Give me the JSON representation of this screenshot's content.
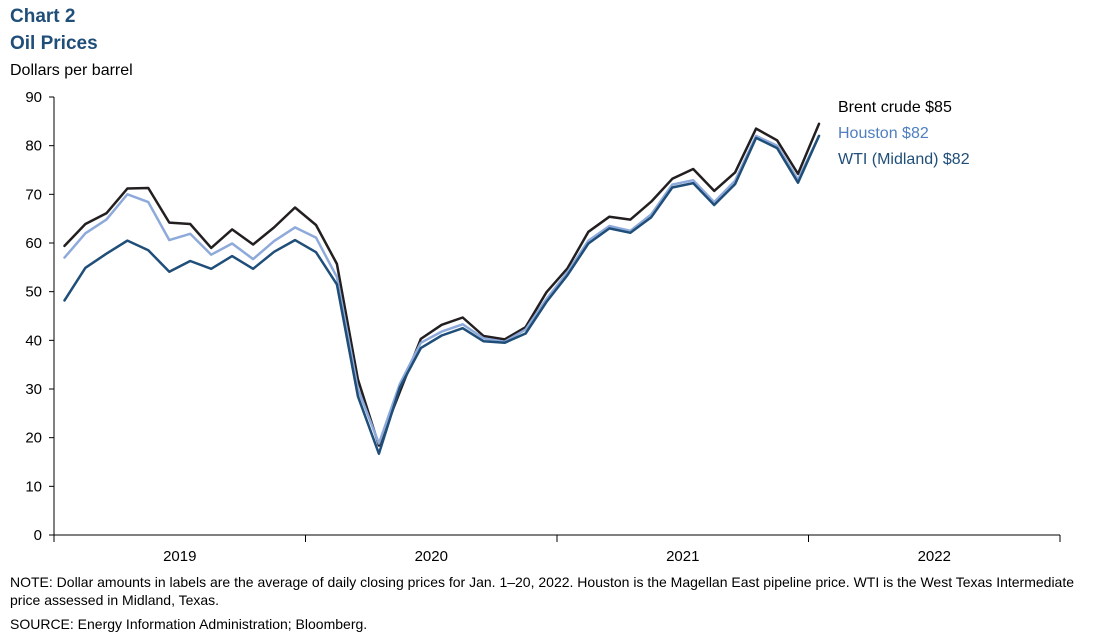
{
  "header": {
    "chart_label": "Chart 2",
    "title": "Oil Prices",
    "y_unit": "Dollars per barrel"
  },
  "notes": {
    "note": "NOTE: Dollar amounts in labels are the average of daily closing prices for Jan. 1–20, 2022. Houston is the Magellan East pipeline price. WTI is the West Texas Intermediate price assessed in Midland, Texas.",
    "source": "SOURCE: Energy Information Administration; Bloomberg."
  },
  "chart_data": {
    "type": "line",
    "ylim": [
      0,
      90
    ],
    "yticks": [
      0,
      10,
      20,
      30,
      40,
      50,
      60,
      70,
      80,
      90
    ],
    "x_start": "2019-01",
    "x_end": "2022-12",
    "xtick_labels": [
      "2019",
      "2020",
      "2021",
      "2022"
    ],
    "grid": false,
    "series": [
      {
        "name": "Brent crude",
        "label": "Brent crude $85",
        "color": "#231f20",
        "values": [
          59.4,
          63.9,
          66.1,
          71.2,
          71.3,
          64.2,
          63.9,
          59.0,
          62.8,
          59.7,
          63.2,
          67.3,
          63.7,
          55.7,
          32.0,
          18.4,
          29.4,
          40.3,
          43.2,
          44.7,
          40.9,
          40.2,
          42.7,
          49.9,
          54.8,
          62.3,
          65.4,
          64.8,
          68.5,
          73.2,
          75.2,
          70.7,
          74.5,
          83.5,
          81.1,
          74.2,
          84.5
        ]
      },
      {
        "name": "Houston",
        "label": "Houston $82",
        "color": "#8eaadb",
        "values": [
          57.0,
          62.0,
          64.8,
          70.0,
          68.4,
          60.6,
          61.9,
          57.6,
          59.9,
          56.7,
          60.4,
          63.2,
          61.1,
          53.0,
          30.0,
          18.8,
          31.0,
          39.5,
          41.8,
          43.3,
          40.4,
          39.7,
          42.2,
          48.5,
          54.0,
          60.5,
          63.5,
          62.5,
          65.9,
          72.0,
          72.9,
          68.4,
          72.8,
          82.0,
          80.0,
          73.0,
          82.0
        ]
      },
      {
        "name": "WTI (Midland)",
        "label": "WTI (Midland) $82",
        "color": "#1f4e79",
        "values": [
          48.2,
          54.9,
          57.8,
          60.5,
          58.5,
          54.1,
          56.3,
          54.7,
          57.3,
          54.7,
          58.2,
          60.6,
          58.1,
          51.5,
          28.5,
          16.7,
          30.3,
          38.4,
          41.0,
          42.5,
          39.8,
          39.5,
          41.4,
          47.9,
          53.4,
          59.9,
          63.0,
          62.1,
          65.3,
          71.4,
          72.3,
          67.8,
          72.1,
          81.6,
          79.5,
          72.4,
          82.0
        ]
      }
    ]
  }
}
